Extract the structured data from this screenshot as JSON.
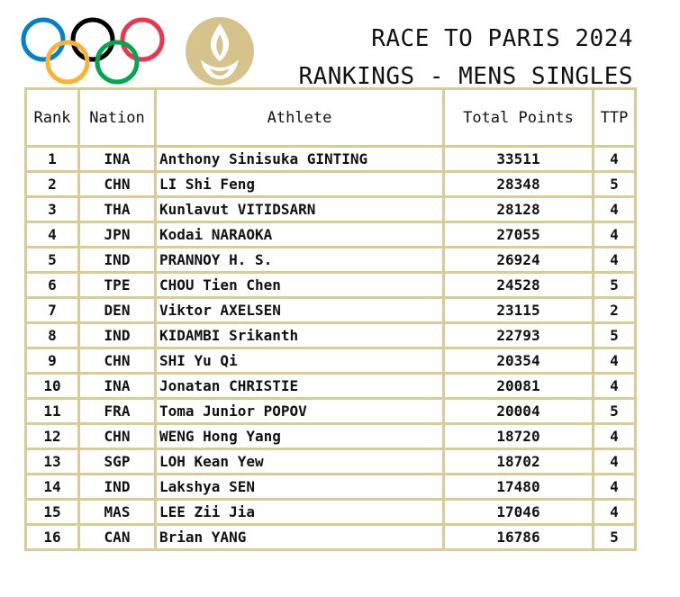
{
  "header": {
    "title_line1": "RACE TO PARIS 2024",
    "title_line2": "RANKINGS - MENS SINGLES"
  },
  "logos": {
    "rings_icon": "olympic-rings-icon",
    "rings_colors": [
      "#0081c8",
      "#fcb131",
      "#000000",
      "#00a651",
      "#ee334e"
    ],
    "flame_icon": "paris-2024-emblem-icon",
    "flame_color": "#d6c28b"
  },
  "table": {
    "headers": {
      "rank": "Rank",
      "nation": "Nation",
      "athlete": "Athlete",
      "points": "Total Points",
      "ttp": "TTP"
    },
    "rows": [
      {
        "rank": "1",
        "nation": "INA",
        "athlete": "Anthony Sinisuka GINTING",
        "points": "33511",
        "ttp": "4"
      },
      {
        "rank": "2",
        "nation": "CHN",
        "athlete": "LI Shi Feng",
        "points": "28348",
        "ttp": "5"
      },
      {
        "rank": "3",
        "nation": "THA",
        "athlete": "Kunlavut VITIDSARN",
        "points": "28128",
        "ttp": "4"
      },
      {
        "rank": "4",
        "nation": "JPN",
        "athlete": "Kodai NARAOKA",
        "points": "27055",
        "ttp": "4"
      },
      {
        "rank": "5",
        "nation": "IND",
        "athlete": "PRANNOY H. S.",
        "points": "26924",
        "ttp": "4"
      },
      {
        "rank": "6",
        "nation": "TPE",
        "athlete": "CHOU Tien Chen",
        "points": "24528",
        "ttp": "5"
      },
      {
        "rank": "7",
        "nation": "DEN",
        "athlete": "Viktor AXELSEN",
        "points": "23115",
        "ttp": "2"
      },
      {
        "rank": "8",
        "nation": "IND",
        "athlete": "KIDAMBI Srikanth",
        "points": "22793",
        "ttp": "5"
      },
      {
        "rank": "9",
        "nation": "CHN",
        "athlete": "SHI Yu Qi",
        "points": "20354",
        "ttp": "4"
      },
      {
        "rank": "10",
        "nation": "INA",
        "athlete": "Jonatan CHRISTIE",
        "points": "20081",
        "ttp": "4"
      },
      {
        "rank": "11",
        "nation": "FRA",
        "athlete": "Toma Junior POPOV",
        "points": "20004",
        "ttp": "5"
      },
      {
        "rank": "12",
        "nation": "CHN",
        "athlete": "WENG Hong Yang",
        "points": "18720",
        "ttp": "4"
      },
      {
        "rank": "13",
        "nation": "SGP",
        "athlete": "LOH Kean Yew",
        "points": "18702",
        "ttp": "4"
      },
      {
        "rank": "14",
        "nation": "IND",
        "athlete": "Lakshya SEN",
        "points": "17480",
        "ttp": "4"
      },
      {
        "rank": "15",
        "nation": "MAS",
        "athlete": "LEE Zii Jia",
        "points": "17046",
        "ttp": "4"
      },
      {
        "rank": "16",
        "nation": "CAN",
        "athlete": "Brian YANG",
        "points": "16786",
        "ttp": "5"
      }
    ]
  }
}
